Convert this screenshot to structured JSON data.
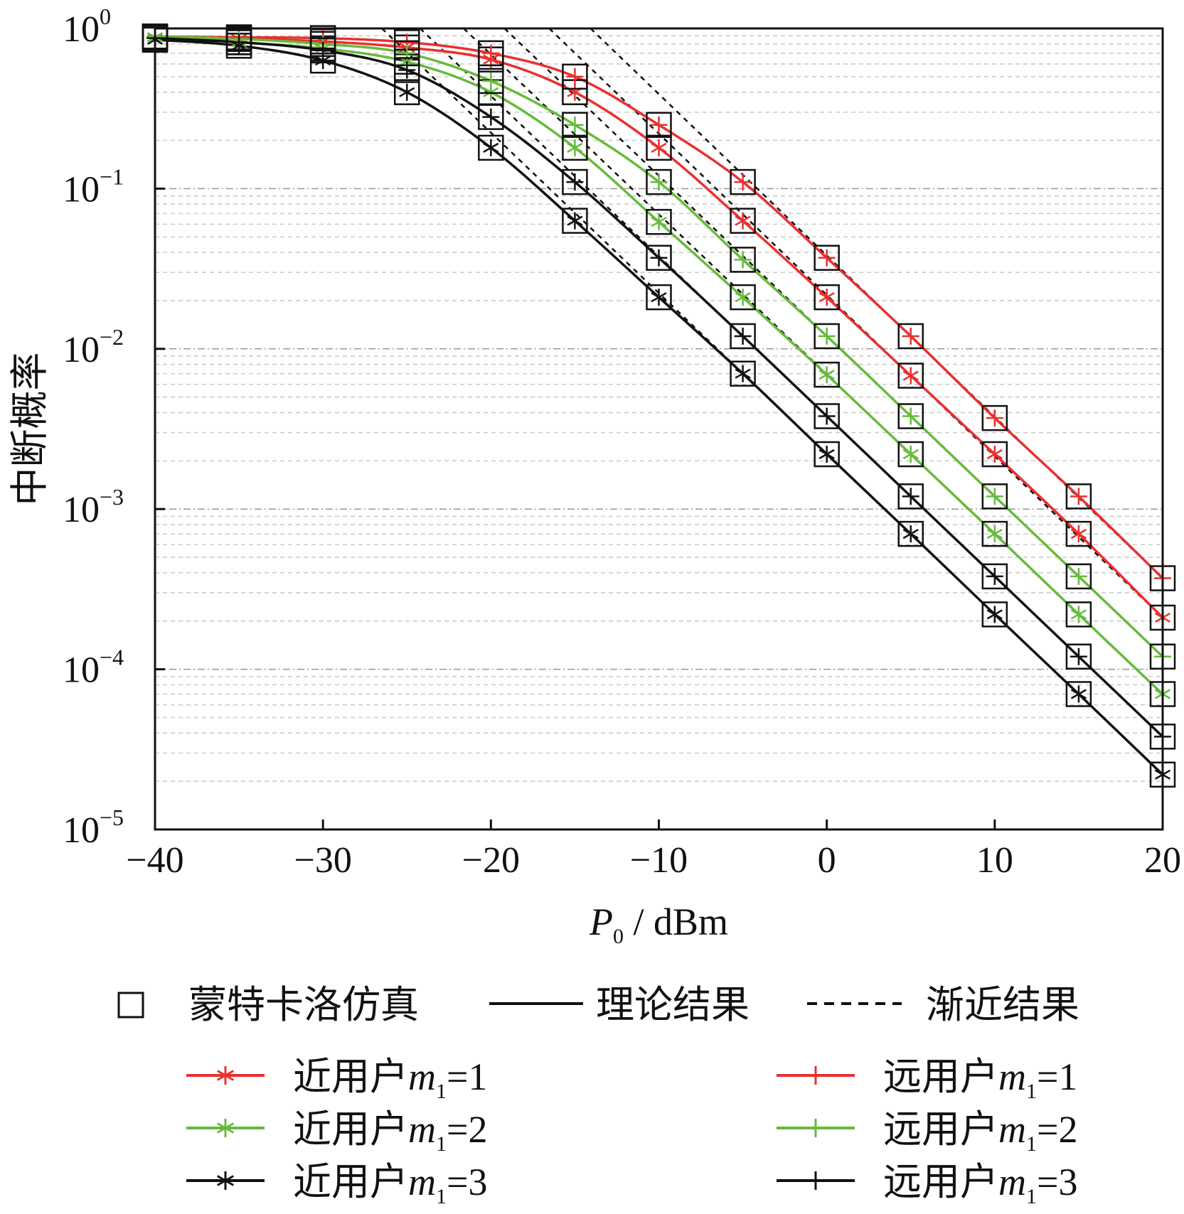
{
  "chart_data": {
    "type": "line",
    "xlabel_main": "P",
    "xlabel_sub": "0",
    "xlabel_unit": " / dBm",
    "ylabel": "中断概率",
    "y_scale": "log",
    "xlim": [
      -40,
      20
    ],
    "ylim": [
      1e-05,
      1
    ],
    "x_ticks": [
      -40,
      -30,
      -20,
      -10,
      0,
      10,
      20
    ],
    "x_tick_labels": [
      "−40",
      "−30",
      "−20",
      "−10",
      "0",
      "10",
      "20"
    ],
    "y_ticks": [
      {
        "base": "10",
        "exp": "0"
      },
      {
        "base": "10",
        "exp": "−1"
      },
      {
        "base": "10",
        "exp": "−2"
      },
      {
        "base": "10",
        "exp": "−3"
      },
      {
        "base": "10",
        "exp": "−4"
      },
      {
        "base": "10",
        "exp": "−5"
      }
    ],
    "grid": true,
    "legend": {
      "top_row": [
        "蒙特卡洛仿真",
        "理论结果",
        "渐近结果"
      ],
      "series_label_prefix_near": "近用户",
      "series_label_prefix_far": "远用户",
      "series_var": "m",
      "series_var_sub": "1"
    },
    "colors": {
      "m1": "#e8312f",
      "m2": "#66bb3c",
      "m3": "#111111"
    },
    "x": [
      -40,
      -35,
      -30,
      -25,
      -20,
      -15,
      -10,
      -5,
      0,
      5,
      10,
      15,
      20
    ],
    "series": [
      {
        "name": "近用户m1=1",
        "user": "near",
        "m": "1",
        "marker": "asterisk",
        "color": "#e8312f",
        "values": [
          0.88,
          0.86,
          0.83,
          0.76,
          0.64,
          0.4,
          0.18,
          0.063,
          0.021,
          0.0068,
          0.0022,
          0.0007,
          0.00021
        ]
      },
      {
        "name": "近用户m1=2",
        "user": "near",
        "m": "2",
        "marker": "asterisk",
        "color": "#66bb3c",
        "values": [
          0.88,
          0.82,
          0.75,
          0.62,
          0.4,
          0.18,
          0.062,
          0.021,
          0.0069,
          0.0022,
          0.0007,
          0.00022,
          7e-05
        ]
      },
      {
        "name": "近用户m1=3",
        "user": "near",
        "m": "3",
        "marker": "asterisk",
        "color": "#111111",
        "values": [
          0.85,
          0.78,
          0.63,
          0.4,
          0.18,
          0.063,
          0.021,
          0.007,
          0.0022,
          0.0007,
          0.00022,
          7e-05,
          2.2e-05
        ]
      },
      {
        "name": "远用户m1=1",
        "user": "far",
        "m": "1",
        "marker": "plus",
        "color": "#e8312f",
        "values": [
          0.89,
          0.88,
          0.87,
          0.82,
          0.7,
          0.5,
          0.25,
          0.11,
          0.037,
          0.012,
          0.0037,
          0.0012,
          0.00037
        ]
      },
      {
        "name": "远用户m1=2",
        "user": "far",
        "m": "2",
        "marker": "plus",
        "color": "#66bb3c",
        "values": [
          0.89,
          0.86,
          0.8,
          0.7,
          0.47,
          0.25,
          0.11,
          0.036,
          0.012,
          0.0038,
          0.0012,
          0.00038,
          0.00012
        ]
      },
      {
        "name": "远用户m1=3",
        "user": "far",
        "m": "3",
        "marker": "plus",
        "color": "#111111",
        "values": [
          0.87,
          0.82,
          0.73,
          0.55,
          0.28,
          0.11,
          0.037,
          0.012,
          0.0038,
          0.0012,
          0.00038,
          0.00012,
          3.8e-05
        ]
      }
    ]
  }
}
